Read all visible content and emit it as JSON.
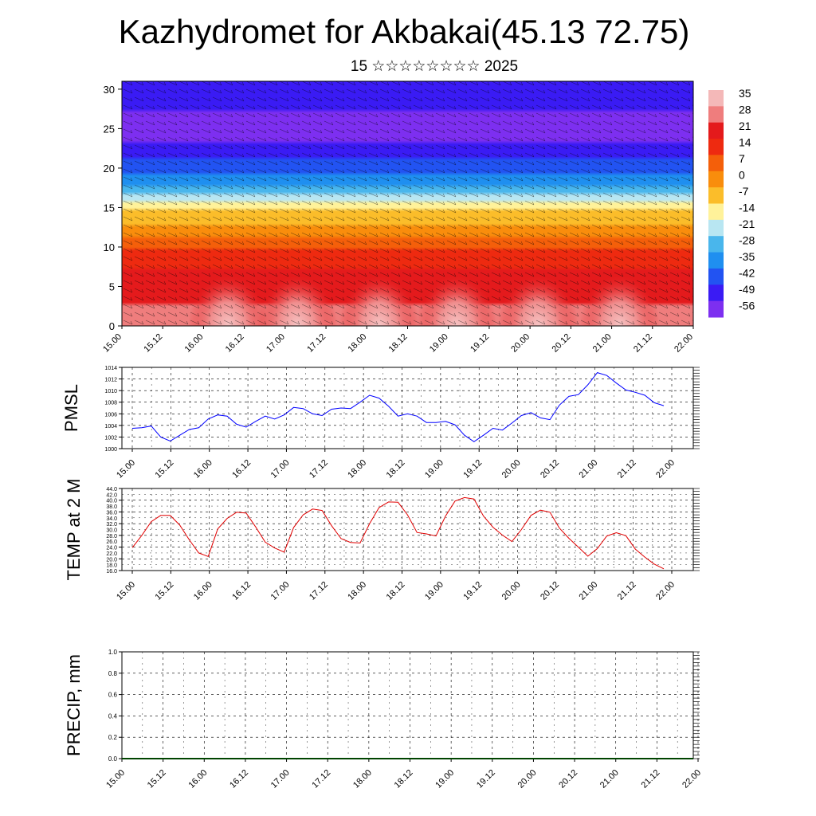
{
  "title": "Kazhydromet for Akbakai(45.13 72.75)",
  "subtitle": "15 ☆☆☆☆☆☆☆☆ 2025",
  "colors": {
    "pmsl_line": "#0000ff",
    "temp_line": "#e00000",
    "precip_line": "#004400",
    "grid": "#000000"
  },
  "chart_data": [
    {
      "id": "cross_section",
      "type": "heatmap",
      "title": "",
      "ylabel": "",
      "ylim": [
        0,
        31
      ],
      "yticks": [
        0,
        5,
        10,
        15,
        20,
        25,
        30
      ],
      "x_tick_labels": [
        "15.00",
        "15.12",
        "16.00",
        "16.12",
        "17.00",
        "17.12",
        "18.00",
        "18.12",
        "19.00",
        "19.12",
        "20.00",
        "20.12",
        "21.00",
        "21.12",
        "22.00"
      ],
      "colorbar_labels": [
        "35",
        "28",
        "21",
        "14",
        "7",
        "0",
        "-7",
        "-14",
        "-21",
        "-28",
        "-35",
        "-42",
        "-49",
        "-56"
      ],
      "colorbar_colors": [
        "#f4b8b8",
        "#ef7d7d",
        "#e41a1c",
        "#ee2a10",
        "#f45f0a",
        "#f98d0c",
        "#fbbd2a",
        "#fff29a",
        "#b8e6f2",
        "#49b6ec",
        "#1f8ff0",
        "#2253f2",
        "#3a1bf4",
        "#7d2ff0"
      ],
      "temperature_profile": [
        {
          "level": 0,
          "value": 28
        },
        {
          "level": 5,
          "value": 21
        },
        {
          "level": 9,
          "value": 14
        },
        {
          "level": 12,
          "value": 0
        },
        {
          "level": 15.5,
          "value": -14
        },
        {
          "level": 18,
          "value": -35
        },
        {
          "level": 24,
          "value": -56
        },
        {
          "level": 31,
          "value": -49
        }
      ],
      "warm_blobs_x": [
        1.3,
        2.15,
        3.15,
        4.1,
        5.1,
        6.1
      ]
    },
    {
      "id": "pmsl",
      "type": "line",
      "ylabel": "PMSL",
      "ylim": [
        1000,
        1014
      ],
      "yticks": [
        1000,
        1002,
        1004,
        1006,
        1008,
        1010,
        1012,
        1014
      ],
      "x_tick_labels": [
        "15.00",
        "15.12",
        "16.00",
        "16.12",
        "17.00",
        "17.12",
        "18.00",
        "18.12",
        "19.00",
        "19.12",
        "20.00",
        "20.12",
        "21.00",
        "21.12",
        "22.00"
      ],
      "series": [
        {
          "values": [
            1003.5,
            1003.6,
            1003.9,
            1002.0,
            1001.3,
            1002.3,
            1003.3,
            1003.6,
            1005.1,
            1005.8,
            1005.6,
            1004.2,
            1003.7,
            1004.7,
            1005.6,
            1005.1,
            1005.8,
            1007.1,
            1006.9,
            1006.0,
            1005.7,
            1006.8,
            1007.0,
            1006.9,
            1008.0,
            1009.2,
            1008.7,
            1007.3,
            1005.6,
            1006.0,
            1005.6,
            1004.5,
            1004.5,
            1004.7,
            1004.1,
            1002.3,
            1001.2,
            1002.3,
            1003.5,
            1003.2,
            1004.4,
            1005.7,
            1006.2,
            1005.3,
            1005.0,
            1007.5,
            1009.0,
            1009.3,
            1011.0,
            1013.1,
            1012.6,
            1011.3,
            1010.1,
            1009.7,
            1009.2,
            1007.9,
            1007.4
          ]
        }
      ]
    },
    {
      "id": "temp2m",
      "type": "line",
      "ylabel": "TEMP at 2 M",
      "ylim": [
        16,
        44
      ],
      "yticks": [
        "16.0",
        "20.0",
        "24.0",
        "28.0",
        "32.0",
        "36.0",
        "40.0",
        "44.0"
      ],
      "yticks_minor": [
        "18.0",
        "22.0",
        "26.0",
        "30.0",
        "34.0",
        "38.0",
        "42.0"
      ],
      "x_tick_labels": [
        "15.00",
        "15.12",
        "16.00",
        "16.12",
        "17.00",
        "17.12",
        "18.00",
        "18.12",
        "19.00",
        "19.12",
        "20.00",
        "20.12",
        "21.00",
        "21.12",
        "22.00"
      ],
      "series": [
        {
          "values": [
            23.8,
            28.0,
            32.7,
            34.8,
            34.8,
            31.5,
            26.5,
            22.0,
            20.8,
            30.2,
            33.8,
            35.9,
            35.6,
            30.9,
            25.7,
            23.7,
            22.3,
            30.7,
            35.0,
            37.0,
            36.5,
            31.3,
            26.9,
            25.6,
            25.4,
            32.0,
            37.5,
            39.4,
            39.3,
            35.0,
            29.0,
            28.5,
            27.8,
            34.6,
            39.7,
            40.9,
            40.4,
            34.6,
            30.8,
            28.1,
            25.9,
            30.0,
            34.8,
            36.6,
            35.9,
            30.5,
            27.0,
            24.0,
            20.9,
            23.5,
            27.8,
            28.9,
            27.9,
            23.3,
            20.6,
            18.2,
            16.6
          ]
        }
      ]
    },
    {
      "id": "precip",
      "type": "line",
      "ylabel": "PRECIP, mm",
      "ylim": [
        0,
        1
      ],
      "yticks": [
        "0.0",
        "0.2",
        "0.4",
        "0.6",
        "0.8",
        "1.0"
      ],
      "x_tick_labels": [
        "15.00",
        "15.12",
        "16.00",
        "16.12",
        "17.00",
        "17.12",
        "18.00",
        "18.12",
        "19.00",
        "19.12",
        "20.00",
        "20.12",
        "21.00",
        "21.12",
        "22.00"
      ],
      "series": [
        {
          "values": [
            0,
            0,
            0,
            0,
            0,
            0,
            0,
            0,
            0,
            0,
            0,
            0,
            0,
            0,
            0,
            0,
            0,
            0,
            0,
            0,
            0,
            0,
            0,
            0,
            0,
            0,
            0,
            0,
            0,
            0,
            0,
            0,
            0,
            0,
            0,
            0,
            0,
            0,
            0,
            0,
            0,
            0,
            0,
            0,
            0,
            0,
            0,
            0,
            0,
            0,
            0,
            0,
            0,
            0,
            0,
            0,
            0
          ]
        }
      ]
    }
  ]
}
